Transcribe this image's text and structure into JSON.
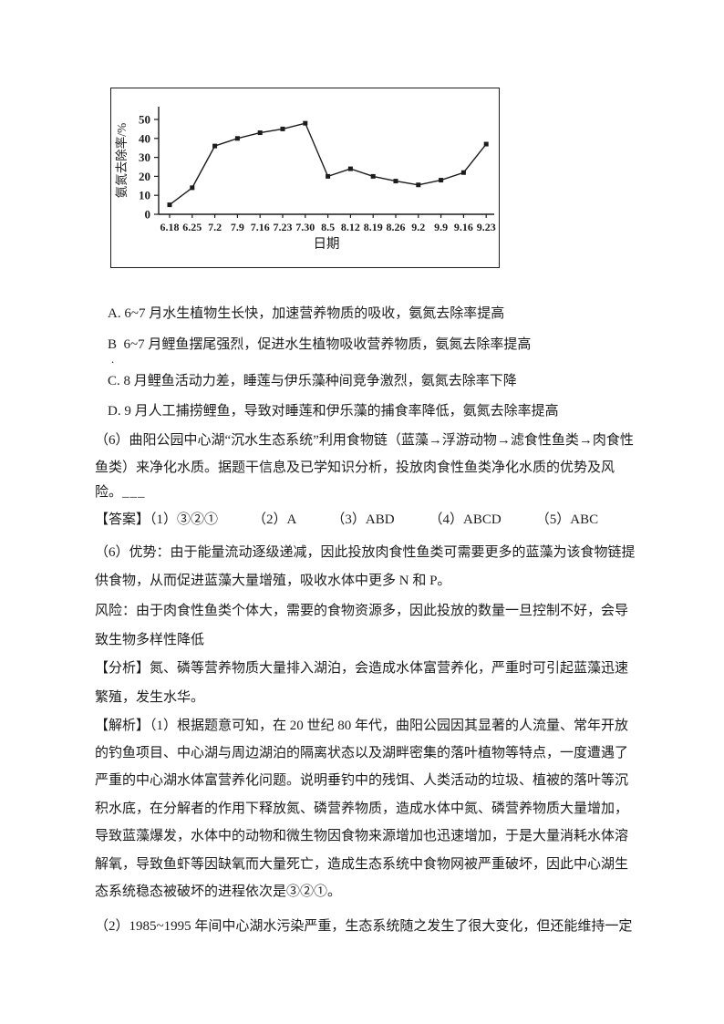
{
  "chart_data": {
    "type": "line",
    "title": "",
    "xlabel": "日期",
    "ylabel": "氨氮去除率/%",
    "x": [
      "6.18",
      "6.25",
      "7.2",
      "7.9",
      "7.16",
      "7.23",
      "7.30",
      "8.5",
      "8.12",
      "8.19",
      "8.26",
      "9.2",
      "9.9",
      "9.16",
      "9.23"
    ],
    "values": [
      5,
      14,
      36,
      40,
      43,
      45,
      48,
      20,
      24,
      20,
      17.5,
      15.5,
      18,
      22,
      37
    ],
    "yticks": [
      0,
      10,
      20,
      30,
      40,
      50
    ],
    "ylim": [
      0,
      55
    ],
    "grid": false,
    "legend": "none",
    "line_color": "#1c1c1c",
    "marker": "square"
  },
  "content": {
    "options": {
      "a": "A. 6~7 月水生植物生长快，加速营养物质的吸收，氨氮去除率提高",
      "b": "B  6~7 月鲤鱼摆尾强烈，促进水生植物吸收营养物质，氨氮去除率提高",
      "b_stray": ".",
      "c": "C. 8 月鲤鱼活动力差，睡莲与伊乐藻种间竞争激烈，氨氮去除率下降",
      "d": "D. 9 月人工捕捞鲤鱼，导致对睡莲和伊乐藻的捕食率降低，氨氮去除率提高"
    },
    "question6": {
      "line1": "（6）曲阳公园中心湖“沉水生态系统”利用食物链（蓝藻→浮游动物→滤食性鱼类→肉食性",
      "line2": "鱼类）来净化水质。据题干信息及已学知识分析，投放肉食性鱼类净化水质的优势及风",
      "line3": "险。",
      "blank": "___"
    },
    "answer": {
      "label": "【答案】",
      "items": [
        "（1）③②①",
        "（2）A",
        "（3）ABD",
        "（4）ABCD",
        "（5）ABC"
      ]
    },
    "advantage": {
      "line1": "（6）优势：由于能量流动逐级递减，因此投放肉食性鱼类可需要更多的蓝藻为该食物链提",
      "line2": "供食物，从而促进蓝藻大量增殖，吸收水体中更多 N 和 P。"
    },
    "risk": {
      "line1": "风险：由于肉食性鱼类个体大，需要的食物资源多，因此投放的数量一旦控制不好，会导",
      "line2": "致生物多样性降低"
    },
    "analysis": {
      "line1": "【分析】氮、磷等营养物质大量排入湖泊，会造成水体富营养化，严重时可引起蓝藻迅速",
      "line2": "繁殖，发生水华。"
    },
    "explanation": {
      "line1": "【解析】（1）根据题意可知，在 20 世纪 80 年代，曲阳公园因其显著的人流量、常年开放",
      "line2": "的钓鱼项目、中心湖与周边湖泊的隔离状态以及湖畔密集的落叶植物等特点，一度遭遇了",
      "line3": "严重的中心湖水体富营养化问题。说明垂钓中的残饵、人类活动的垃圾、植被的落叶等沉",
      "line4": "积水底，在分解者的作用下释放氮、磷营养物质，造成水体中氮、磷营养物质大量增加，",
      "line5": "导致蓝藻爆发，水体中的动物和微生物因食物来源增加也迅速增加，于是大量消耗水体溶",
      "line6": "解氧，导致鱼虾等因缺氧而大量死亡，造成生态系统中食物网被严重破坏，因此中心湖生",
      "line7": "态系统稳态被破坏的进程依次是③②①。"
    },
    "part2": {
      "line1": "（2）1985~1995 年间中心湖水污染严重，生态系统随之发生了很大变化，但还能维持一定"
    }
  }
}
